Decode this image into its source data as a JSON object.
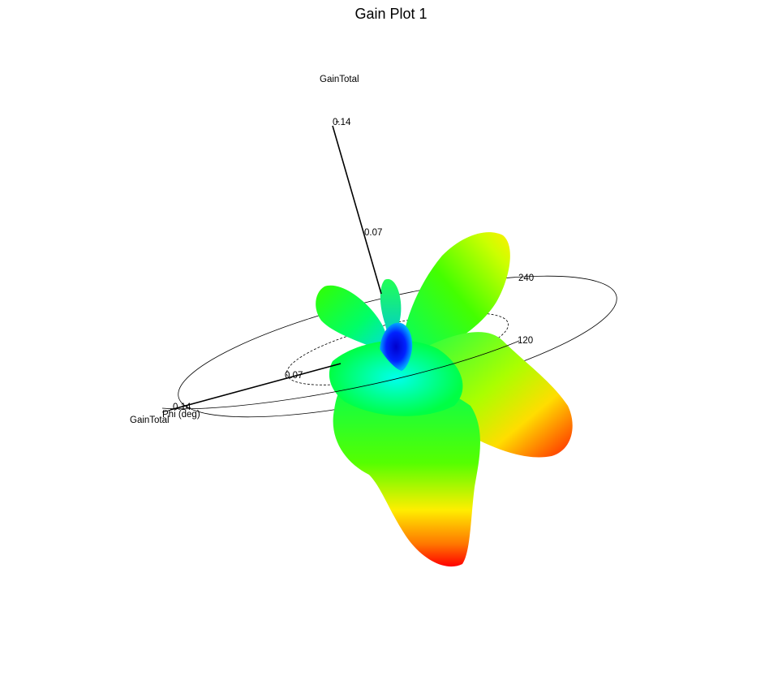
{
  "chart_data": {
    "type": "3d-polar-surface",
    "title": "Gain Plot 1",
    "quantity": "GainTotal",
    "vertical_axis": {
      "label": "GainTotal",
      "ticks": [
        "0.07",
        "0.14"
      ]
    },
    "radial_axis": {
      "label": "GainTotal",
      "ticks": [
        "0.07",
        "0.14"
      ]
    },
    "phi_axis": {
      "label": "Phi (deg)",
      "ticks": [
        "120",
        "240"
      ]
    },
    "color_scale": {
      "min": 0,
      "max": 0.14,
      "colors": [
        "#0000ff",
        "#00ffff",
        "#00ff00",
        "#ffff00",
        "#ff0000"
      ]
    },
    "lobes": [
      {
        "id": "bottom",
        "peak": 0.14
      },
      {
        "id": "right",
        "peak": 0.14
      },
      {
        "id": "upper-right",
        "peak": 0.1
      },
      {
        "id": "upper-left",
        "peak": 0.07
      },
      {
        "id": "top-small",
        "peak": 0.03
      }
    ]
  }
}
